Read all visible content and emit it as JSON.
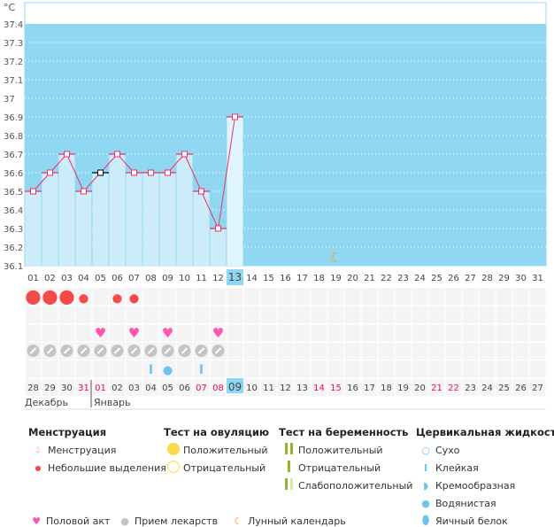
{
  "chart_data": {
    "type": "line",
    "unit_label": "°C",
    "y_ticks": [
      "37.4",
      "37.3",
      "37.2",
      "37.1",
      "37",
      "36.9",
      "36.8",
      "36.7",
      "36.6",
      "36.5",
      "36.4",
      "36.3",
      "36.2",
      "36.1"
    ],
    "ylim": [
      36.1,
      37.4
    ],
    "cycle_days": [
      "01",
      "02",
      "03",
      "04",
      "05",
      "06",
      "07",
      "08",
      "09",
      "10",
      "11",
      "12",
      "13",
      "14",
      "15",
      "16",
      "17",
      "18",
      "19",
      "20",
      "21",
      "22",
      "23",
      "24",
      "25",
      "26",
      "27",
      "28",
      "29",
      "30",
      "31"
    ],
    "current_day_index": 12,
    "selected_day_index": 4,
    "temperatures": [
      36.5,
      36.6,
      36.7,
      36.5,
      36.6,
      36.7,
      36.6,
      36.6,
      36.6,
      36.7,
      36.5,
      36.3,
      36.9
    ],
    "moon_day_index": 18
  },
  "calendar_dates": [
    "28",
    "29",
    "30",
    "31",
    "01",
    "02",
    "03",
    "04",
    "05",
    "06",
    "07",
    "08",
    "09",
    "10",
    "11",
    "12",
    "13",
    "14",
    "15",
    "16",
    "17",
    "18",
    "19",
    "20",
    "21",
    "22",
    "23",
    "24",
    "25",
    "26",
    "27"
  ],
  "weekend_indices": [
    3,
    4,
    10,
    11,
    17,
    18,
    24,
    25
  ],
  "today_index": 12,
  "months": {
    "prev": "Декабрь",
    "current": "Январь"
  },
  "rows": {
    "menstruation": [
      "big",
      "big",
      "big",
      "small",
      "",
      "small",
      "small"
    ],
    "intercourse_indices": [
      4,
      6,
      8,
      11
    ],
    "medication_count": 12,
    "cervical": {
      "7": "sticky",
      "8": "watery",
      "10": "sticky"
    }
  },
  "colors": {
    "plot_bg": "#90d8f2",
    "bar": "#cdecfa",
    "line": "#f0306a",
    "weekend": "#e8104e",
    "heart": "#ff55b0",
    "drop": "#f54a4a",
    "pill": "#c4c4c4",
    "moon": "#f39a1e",
    "cervical": "#6cc3ee"
  },
  "legend": {
    "menstruation": {
      "title": "Менструация",
      "items": [
        "Менструация",
        "Небольшие выделения"
      ]
    },
    "ovulation": {
      "title": "Тест на овуляцию",
      "items": [
        "Положительный",
        "Отрицательный"
      ]
    },
    "pregnancy": {
      "title": "Тест на беременность",
      "items": [
        "Положительный",
        "Отрицательный",
        "Слабоположительный"
      ]
    },
    "cervical": {
      "title": "Цервикальная жидкость",
      "items": [
        "Сухо",
        "Клейкая",
        "Кремообразная",
        "Водянистая",
        "Яичный белок"
      ]
    },
    "other": [
      "Половой акт",
      "Прием лекарств",
      "Лунный календарь"
    ]
  }
}
